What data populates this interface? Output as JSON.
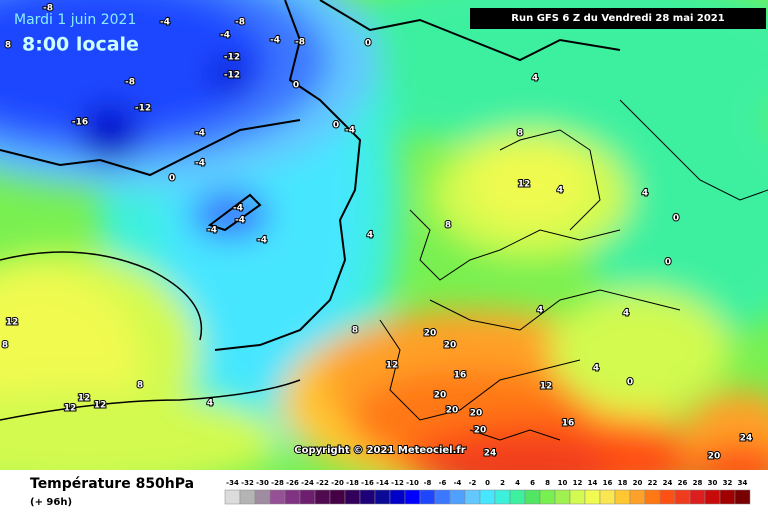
{
  "header": {
    "date": "Mardi 1 juin 2021",
    "time": "8:00 locale",
    "run": "Run GFS 6 Z du Vendredi 28 mai 2021"
  },
  "copyright": "Copyright © 2021 Meteociel.fr",
  "footer": {
    "title": "Température 850hPa",
    "lead": "(+ 96h)"
  },
  "contour_labels": [
    -8,
    -4,
    -8,
    -4,
    -4,
    -8,
    8,
    0,
    -12,
    -8,
    -12,
    -12,
    -16,
    -4,
    -4,
    0,
    0,
    0,
    -4,
    -4,
    -4,
    -4,
    -4,
    4,
    4,
    8,
    8,
    12,
    4,
    8,
    0,
    0,
    4,
    4,
    0,
    4,
    4,
    8,
    12,
    12,
    12,
    12,
    8,
    4,
    20,
    20,
    16,
    20,
    20,
    20,
    20,
    24,
    16,
    12,
    12,
    20,
    24
  ],
  "legend": {
    "labels": [
      -34,
      -32,
      -30,
      -28,
      -26,
      -24,
      -22,
      -20,
      -18,
      -16,
      -14,
      -12,
      -10,
      -8,
      -6,
      -4,
      -2,
      0,
      2,
      4,
      6,
      8,
      10,
      12,
      14,
      16,
      18,
      20,
      22,
      24,
      26,
      28,
      30,
      32,
      34
    ],
    "colors": [
      "#dcdcdc",
      "#b4b4b4",
      "#a08ca0",
      "#965096",
      "#823282",
      "#6e1e6e",
      "#500a50",
      "#460046",
      "#32005a",
      "#1e0078",
      "#0a0a96",
      "#0000c8",
      "#0000ff",
      "#1e46ff",
      "#3c78ff",
      "#50a0ff",
      "#64c8ff",
      "#46e6ff",
      "#3cf0dc",
      "#3cf0a0",
      "#50e664",
      "#78f050",
      "#a0f050",
      "#d2fa50",
      "#f0fa50",
      "#fae650",
      "#ffc832",
      "#ffa028",
      "#ff7814",
      "#ff5014",
      "#f03c1e",
      "#dc1e1e",
      "#c80a0a",
      "#a00000",
      "#780000"
    ]
  }
}
